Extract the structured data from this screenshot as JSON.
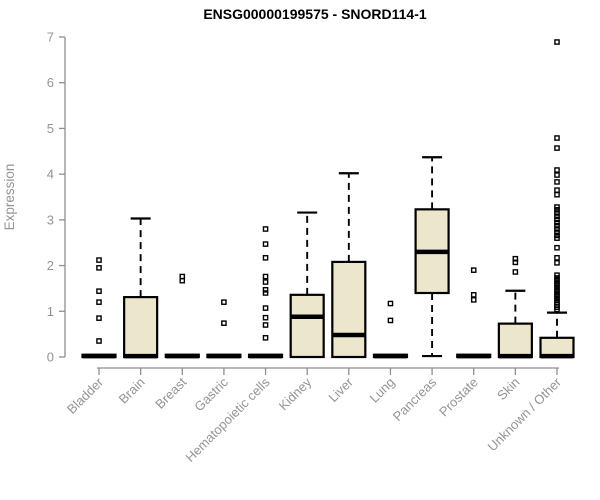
{
  "chart_data": {
    "type": "boxplot",
    "title": "ENSG00000199575 - SNORD114-1",
    "ylabel": "Expression",
    "xlabel": "",
    "ylim": [
      0,
      7
    ],
    "yticks": [
      0,
      1,
      2,
      3,
      4,
      5,
      6,
      7
    ],
    "grid": false,
    "legend": "none",
    "box_fill": "#ECE7CC",
    "box_stroke": "#000000",
    "axis_color": "#8f8f8f",
    "label_color": "#949494",
    "title_color": "#000000",
    "categories": [
      {
        "label": "Bladder",
        "q1": 0,
        "median": 0.02,
        "q3": 0.05,
        "whisker_low": null,
        "whisker_high": null,
        "outliers": [
          2.12,
          1.95,
          1.44,
          1.2,
          0.85,
          0.35
        ]
      },
      {
        "label": "Brain",
        "q1": 0,
        "median": 0.02,
        "q3": 1.31,
        "whisker_low": null,
        "whisker_high": 3.03,
        "outliers": []
      },
      {
        "label": "Breast",
        "q1": 0,
        "median": 0.02,
        "q3": 0.05,
        "whisker_low": null,
        "whisker_high": null,
        "outliers": [
          1.76,
          1.67
        ]
      },
      {
        "label": "Gastric",
        "q1": 0,
        "median": 0.02,
        "q3": 0.05,
        "whisker_low": null,
        "whisker_high": null,
        "outliers": [
          1.2,
          0.74
        ]
      },
      {
        "label": "Hematopoietic cells",
        "q1": 0,
        "median": 0.02,
        "q3": 0.05,
        "whisker_low": null,
        "whisker_high": null,
        "outliers": [
          2.8,
          2.47,
          2.17,
          1.76,
          1.64,
          1.47,
          1.4,
          1.07,
          0.86,
          0.7,
          0.42
        ]
      },
      {
        "label": "Kidney",
        "q1": 0,
        "median": 0.88,
        "q3": 1.36,
        "whisker_low": null,
        "whisker_high": 3.16,
        "outliers": []
      },
      {
        "label": "Liver",
        "q1": 0,
        "median": 0.48,
        "q3": 2.08,
        "whisker_low": null,
        "whisker_high": 4.02,
        "outliers": []
      },
      {
        "label": "Lung",
        "q1": 0,
        "median": 0.02,
        "q3": 0.05,
        "whisker_low": null,
        "whisker_high": null,
        "outliers": [
          1.17,
          0.8
        ]
      },
      {
        "label": "Pancreas",
        "q1": 1.4,
        "median": 2.3,
        "q3": 3.23,
        "whisker_low": 0.02,
        "whisker_high": 4.37,
        "outliers": []
      },
      {
        "label": "Prostate",
        "q1": 0,
        "median": 0.02,
        "q3": 0.05,
        "whisker_low": null,
        "whisker_high": null,
        "outliers": [
          1.9,
          1.36,
          1.25
        ]
      },
      {
        "label": "Skin",
        "q1": 0,
        "median": 0.02,
        "q3": 0.73,
        "whisker_low": null,
        "whisker_high": 1.45,
        "outliers": [
          2.15,
          2.07,
          1.86
        ]
      },
      {
        "label": "Unknown / Other",
        "q1": 0,
        "median": 0.02,
        "q3": 0.42,
        "whisker_low": null,
        "whisker_high": 0.97,
        "outliers": [
          6.89,
          4.79,
          4.57,
          4.09,
          3.98,
          3.83,
          3.65,
          3.55,
          3.28,
          3.22,
          3.15,
          3.08,
          3.01,
          2.94,
          2.87,
          2.8,
          2.73,
          2.66,
          2.6,
          2.39,
          2.17,
          2.06,
          1.79,
          1.73,
          1.67,
          1.61,
          1.55,
          1.49,
          1.43,
          1.37,
          1.31,
          1.25,
          1.19,
          1.14,
          1.09,
          1.04
        ]
      }
    ]
  }
}
